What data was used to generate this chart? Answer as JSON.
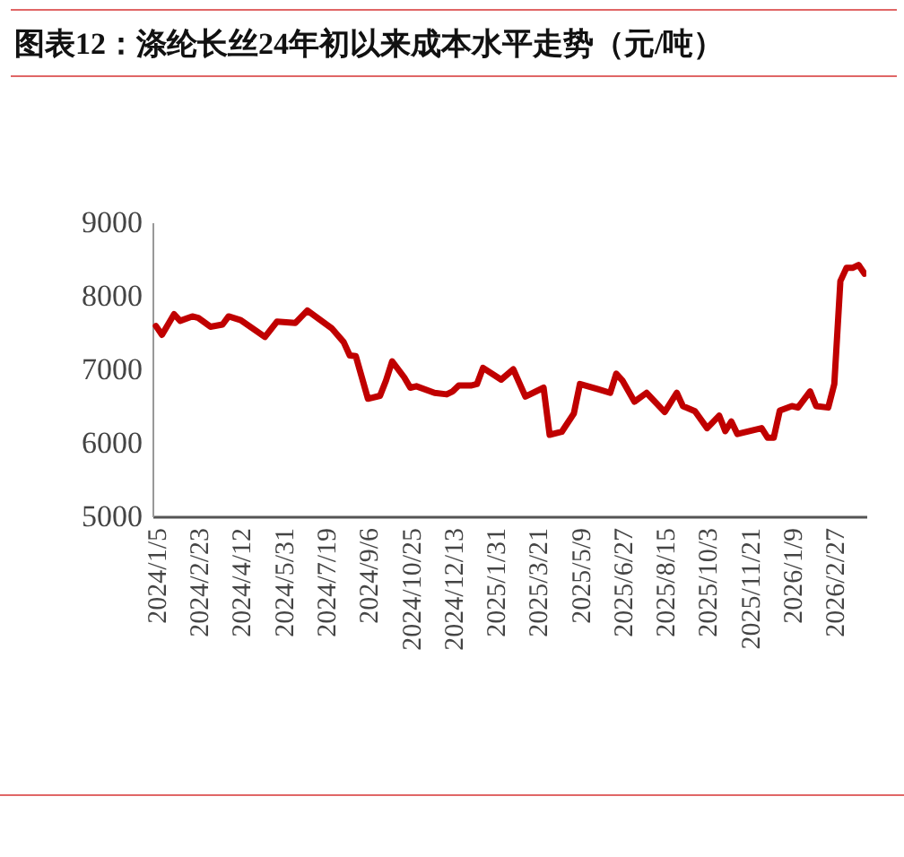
{
  "chart_data": {
    "type": "line",
    "title": "图表12：涤纶长丝24年初以来成本水平走势（元/吨）",
    "series": [
      {
        "color": "#c00000",
        "x": [
          "2024-01-05",
          "2024-01-12",
          "2024-01-26",
          "2024-02-02",
          "2024-02-16",
          "2024-02-23",
          "2024-03-08",
          "2024-03-22",
          "2024-03-29",
          "2024-04-12",
          "2024-05-10",
          "2024-05-24",
          "2024-06-14",
          "2024-06-28",
          "2024-07-26",
          "2024-08-09",
          "2024-08-16",
          "2024-08-23",
          "2024-09-06",
          "2024-09-20",
          "2024-09-27",
          "2024-10-04",
          "2024-10-18",
          "2024-10-25",
          "2024-11-01",
          "2024-11-22",
          "2024-12-06",
          "2024-12-13",
          "2024-12-20",
          "2025-01-03",
          "2025-01-10",
          "2025-01-17",
          "2025-02-07",
          "2025-02-21",
          "2025-03-07",
          "2025-03-28",
          "2025-04-04",
          "2025-04-18",
          "2025-05-02",
          "2025-05-09",
          "2025-05-30",
          "2025-06-13",
          "2025-06-20",
          "2025-06-27",
          "2025-07-11",
          "2025-07-25",
          "2025-08-15",
          "2025-08-29",
          "2025-09-05",
          "2025-09-19",
          "2025-10-03",
          "2025-10-17",
          "2025-10-24",
          "2025-10-31",
          "2025-11-07",
          "2025-12-05",
          "2025-12-12",
          "2025-12-19",
          "2025-12-26",
          "2026-01-09",
          "2026-01-16",
          "2026-01-30",
          "2026-02-06",
          "2026-02-20",
          "2026-02-27",
          "2026-03-06",
          "2026-03-13",
          "2026-03-20",
          "2026-03-27",
          "2026-04-03"
        ],
        "values": [
          7590,
          7470,
          7750,
          7660,
          7720,
          7700,
          7580,
          7610,
          7720,
          7670,
          7440,
          7650,
          7630,
          7800,
          7560,
          7370,
          7190,
          7180,
          6600,
          6640,
          6850,
          7110,
          6890,
          6750,
          6770,
          6680,
          6660,
          6700,
          6780,
          6780,
          6800,
          7020,
          6860,
          7000,
          6630,
          6750,
          6110,
          6150,
          6400,
          6800,
          6730,
          6680,
          6940,
          6850,
          6560,
          6680,
          6420,
          6680,
          6500,
          6430,
          6200,
          6370,
          6160,
          6290,
          6120,
          6200,
          6070,
          6070,
          6440,
          6500,
          6480,
          6700,
          6500,
          6480,
          6800,
          8200,
          8380,
          8380,
          8420,
          8300
        ]
      }
    ],
    "xlim": [
      "2024-01-01",
      "2026-04-05"
    ],
    "xticks": [
      {
        "value": "2024-01-05",
        "label": "2024/1/5"
      },
      {
        "value": "2024-02-23",
        "label": "2024/2/23"
      },
      {
        "value": "2024-04-12",
        "label": "2024/4/12"
      },
      {
        "value": "2024-05-31",
        "label": "2024/5/31"
      },
      {
        "value": "2024-07-19",
        "label": "2024/7/19"
      },
      {
        "value": "2024-09-06",
        "label": "2024/9/6"
      },
      {
        "value": "2024-10-25",
        "label": "2024/10/25"
      },
      {
        "value": "2024-12-13",
        "label": "2024/12/13"
      },
      {
        "value": "2025-01-31",
        "label": "2025/1/31"
      },
      {
        "value": "2025-03-21",
        "label": "2025/3/21"
      },
      {
        "value": "2025-05-09",
        "label": "2025/5/9"
      },
      {
        "value": "2025-06-27",
        "label": "2025/6/27"
      },
      {
        "value": "2025-08-15",
        "label": "2025/8/15"
      },
      {
        "value": "2025-10-03",
        "label": "2025/10/3"
      },
      {
        "value": "2025-11-21",
        "label": "2025/11/21"
      },
      {
        "value": "2026-01-09",
        "label": "2026/1/9"
      },
      {
        "value": "2026-02-27",
        "label": "2026/2/27"
      }
    ],
    "ylim": [
      5000,
      9000
    ],
    "yticks": [
      5000,
      6000,
      7000,
      8000,
      9000
    ],
    "grid": false,
    "marker": "none",
    "line_style": "solid"
  }
}
